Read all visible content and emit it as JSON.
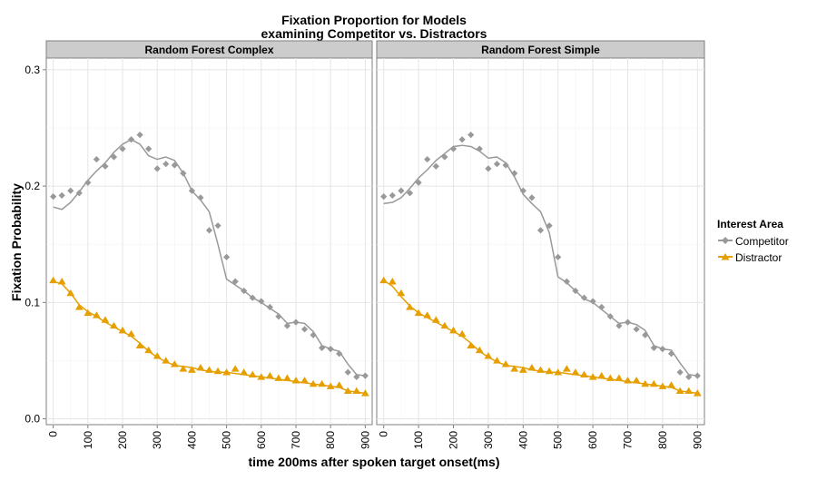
{
  "title_line1": "Fixation Proportion for Models",
  "title_line2": "examining Competitor vs. Distractors",
  "xlabel": "time 200ms after spoken target onset(ms)",
  "ylabel": "Fixation Probability",
  "legend": {
    "title": "Interest Area",
    "items": [
      {
        "label": "Competitor",
        "color": "#999999",
        "marker": "diamond"
      },
      {
        "label": "Distractor",
        "color": "#E69F00",
        "marker": "triangle"
      }
    ]
  },
  "chart_data": [
    {
      "type": "scatter",
      "panel_title": "Random Forest Complex",
      "xlim": [
        -20,
        920
      ],
      "ylim": [
        -0.005,
        0.31
      ],
      "xticks": [
        0,
        100,
        200,
        300,
        400,
        500,
        600,
        700,
        800,
        900
      ],
      "yticks": [
        0.0,
        0.1,
        0.2,
        0.3
      ],
      "ytick_labels": [
        "0.0",
        "0.1",
        "0.2",
        "0.3"
      ],
      "grid": true,
      "legend_position": "right",
      "x": [
        0,
        25,
        50,
        75,
        100,
        125,
        150,
        175,
        200,
        225,
        250,
        275,
        300,
        325,
        350,
        375,
        400,
        425,
        450,
        475,
        500,
        525,
        550,
        575,
        600,
        625,
        650,
        675,
        700,
        725,
        750,
        775,
        800,
        825,
        850,
        875,
        900
      ],
      "series": [
        {
          "name": "Competitor",
          "observed": [
            0.191,
            0.192,
            0.196,
            0.194,
            0.203,
            0.223,
            0.217,
            0.225,
            0.232,
            0.24,
            0.244,
            0.232,
            0.215,
            0.219,
            0.218,
            0.211,
            0.196,
            0.19,
            0.162,
            0.166,
            0.139,
            0.118,
            0.11,
            0.104,
            0.101,
            0.096,
            0.088,
            0.08,
            0.083,
            0.077,
            0.072,
            0.061,
            0.06,
            0.056,
            0.04,
            0.036,
            0.037
          ],
          "model": [
            0.182,
            0.18,
            0.186,
            0.195,
            0.205,
            0.213,
            0.22,
            0.229,
            0.236,
            0.24,
            0.236,
            0.226,
            0.223,
            0.225,
            0.222,
            0.211,
            0.196,
            0.188,
            0.178,
            0.15,
            0.12,
            0.115,
            0.11,
            0.104,
            0.1,
            0.095,
            0.09,
            0.082,
            0.083,
            0.082,
            0.075,
            0.063,
            0.06,
            0.058,
            0.047,
            0.038,
            0.037
          ]
        },
        {
          "name": "Distractor",
          "observed": [
            0.119,
            0.118,
            0.108,
            0.096,
            0.091,
            0.089,
            0.085,
            0.08,
            0.076,
            0.073,
            0.063,
            0.059,
            0.054,
            0.05,
            0.047,
            0.043,
            0.042,
            0.044,
            0.042,
            0.041,
            0.04,
            0.043,
            0.04,
            0.038,
            0.036,
            0.037,
            0.035,
            0.035,
            0.033,
            0.033,
            0.03,
            0.03,
            0.028,
            0.029,
            0.024,
            0.024,
            0.022
          ],
          "model": [
            0.118,
            0.116,
            0.108,
            0.098,
            0.092,
            0.088,
            0.083,
            0.079,
            0.075,
            0.071,
            0.065,
            0.058,
            0.053,
            0.049,
            0.046,
            0.045,
            0.044,
            0.042,
            0.041,
            0.04,
            0.04,
            0.039,
            0.038,
            0.037,
            0.036,
            0.035,
            0.034,
            0.033,
            0.032,
            0.031,
            0.03,
            0.029,
            0.028,
            0.027,
            0.024,
            0.023,
            0.022
          ]
        }
      ]
    },
    {
      "type": "scatter",
      "panel_title": "Random Forest Simple",
      "xlim": [
        -20,
        920
      ],
      "ylim": [
        -0.005,
        0.31
      ],
      "xticks": [
        0,
        100,
        200,
        300,
        400,
        500,
        600,
        700,
        800,
        900
      ],
      "yticks": [
        0.0,
        0.1,
        0.2,
        0.3
      ],
      "grid": true,
      "x": [
        0,
        25,
        50,
        75,
        100,
        125,
        150,
        175,
        200,
        225,
        250,
        275,
        300,
        325,
        350,
        375,
        400,
        425,
        450,
        475,
        500,
        525,
        550,
        575,
        600,
        625,
        650,
        675,
        700,
        725,
        750,
        775,
        800,
        825,
        850,
        875,
        900
      ],
      "series": [
        {
          "name": "Competitor",
          "observed": [
            0.191,
            0.192,
            0.196,
            0.194,
            0.203,
            0.223,
            0.217,
            0.225,
            0.232,
            0.24,
            0.244,
            0.232,
            0.215,
            0.219,
            0.218,
            0.211,
            0.196,
            0.19,
            0.162,
            0.166,
            0.139,
            0.118,
            0.11,
            0.104,
            0.101,
            0.096,
            0.088,
            0.08,
            0.083,
            0.077,
            0.072,
            0.061,
            0.06,
            0.056,
            0.04,
            0.036,
            0.037
          ],
          "model": [
            0.185,
            0.186,
            0.19,
            0.198,
            0.207,
            0.214,
            0.222,
            0.228,
            0.234,
            0.235,
            0.234,
            0.23,
            0.224,
            0.225,
            0.22,
            0.208,
            0.193,
            0.185,
            0.178,
            0.16,
            0.122,
            0.117,
            0.11,
            0.103,
            0.1,
            0.094,
            0.088,
            0.082,
            0.083,
            0.081,
            0.076,
            0.063,
            0.06,
            0.059,
            0.048,
            0.038,
            0.037
          ]
        },
        {
          "name": "Distractor",
          "observed": [
            0.119,
            0.118,
            0.108,
            0.096,
            0.091,
            0.089,
            0.085,
            0.08,
            0.076,
            0.073,
            0.063,
            0.059,
            0.054,
            0.05,
            0.047,
            0.043,
            0.042,
            0.044,
            0.042,
            0.041,
            0.04,
            0.043,
            0.04,
            0.038,
            0.036,
            0.037,
            0.035,
            0.035,
            0.033,
            0.033,
            0.03,
            0.03,
            0.028,
            0.029,
            0.024,
            0.024,
            0.022
          ],
          "model": [
            0.119,
            0.114,
            0.105,
            0.097,
            0.091,
            0.087,
            0.083,
            0.079,
            0.075,
            0.071,
            0.065,
            0.058,
            0.053,
            0.049,
            0.046,
            0.045,
            0.044,
            0.042,
            0.041,
            0.04,
            0.04,
            0.039,
            0.038,
            0.037,
            0.036,
            0.035,
            0.034,
            0.033,
            0.032,
            0.031,
            0.03,
            0.029,
            0.028,
            0.027,
            0.024,
            0.023,
            0.022
          ]
        }
      ]
    }
  ]
}
